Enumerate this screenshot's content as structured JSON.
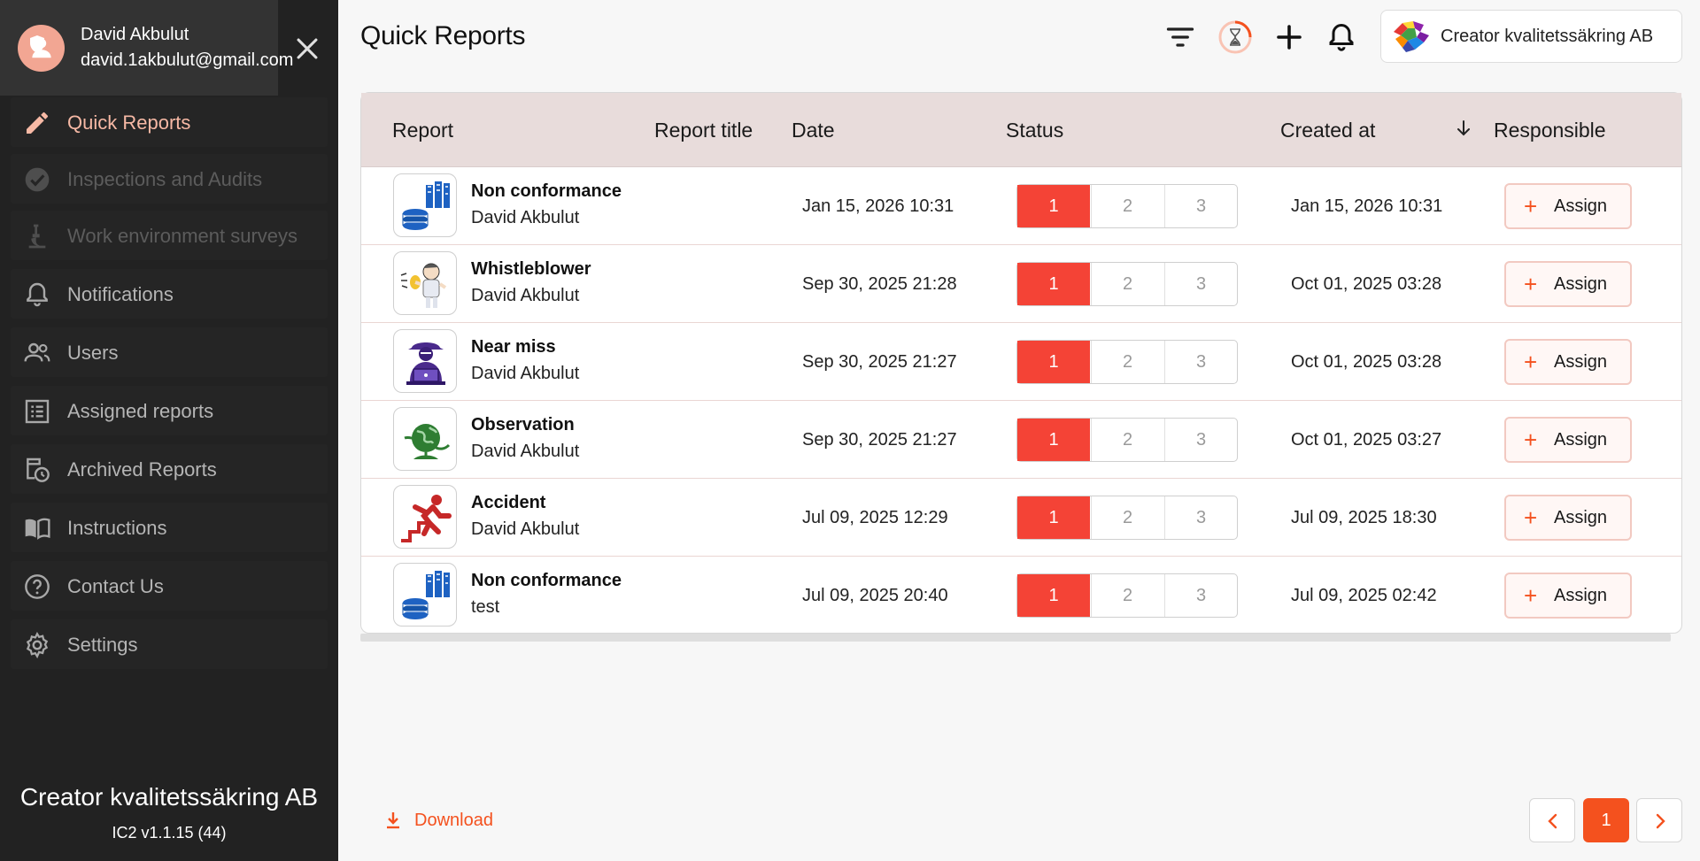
{
  "user": {
    "name": "David Akbulut",
    "email": "david.1akbulut@gmail.com"
  },
  "sidebar": {
    "items": [
      {
        "label": "Quick Reports",
        "icon": "pencil-icon",
        "state": "active"
      },
      {
        "label": "Inspections and Audits",
        "icon": "check-circle-icon",
        "state": "disabled"
      },
      {
        "label": "Work environment surveys",
        "icon": "microscope-icon",
        "state": "disabled"
      },
      {
        "label": "Notifications",
        "icon": "bell-icon",
        "state": "normal"
      },
      {
        "label": "Users",
        "icon": "users-icon",
        "state": "normal"
      },
      {
        "label": "Assigned reports",
        "icon": "list-icon",
        "state": "normal"
      },
      {
        "label": "Archived Reports",
        "icon": "archive-clock-icon",
        "state": "normal"
      },
      {
        "label": "Instructions",
        "icon": "book-icon",
        "state": "normal"
      },
      {
        "label": "Contact Us",
        "icon": "help-icon",
        "state": "normal"
      },
      {
        "label": "Settings",
        "icon": "gear-icon",
        "state": "normal"
      }
    ],
    "company": "Creator kvalitetssäkring AB",
    "version": "IC2 v1.1.15 (44)"
  },
  "header": {
    "title": "Quick Reports",
    "company_label": "Creator kvalitetssäkring AB"
  },
  "table": {
    "columns": {
      "report": "Report",
      "report_title": "Report title",
      "date": "Date",
      "status": "Status",
      "created_at": "Created at",
      "responsible": "Responsible"
    },
    "status_steps": [
      "1",
      "2",
      "3"
    ],
    "assign_label": "Assign",
    "rows": [
      {
        "type": "Non conformance",
        "user": "David Akbulut",
        "date": "Jan 15, 2026 10:31",
        "status": 1,
        "created_at": "Jan 15, 2026 10:31",
        "icon": "non-conformance-icon"
      },
      {
        "type": "Whistleblower",
        "user": "David Akbulut",
        "date": "Sep 30, 2025 21:28",
        "status": 1,
        "created_at": "Oct 01, 2025 03:28",
        "icon": "whistleblower-icon"
      },
      {
        "type": "Near miss",
        "user": "David Akbulut",
        "date": "Sep 30, 2025 21:27",
        "status": 1,
        "created_at": "Oct 01, 2025 03:28",
        "icon": "near-miss-icon"
      },
      {
        "type": "Observation",
        "user": "David Akbulut",
        "date": "Sep 30, 2025 21:27",
        "status": 1,
        "created_at": "Oct 01, 2025 03:27",
        "icon": "observation-icon"
      },
      {
        "type": "Accident",
        "user": "David Akbulut",
        "date": "Jul 09, 2025 12:29",
        "status": 1,
        "created_at": "Jul 09, 2025 18:30",
        "icon": "accident-icon"
      },
      {
        "type": "Non conformance",
        "user": "test",
        "date": "Jul 09, 2025 20:40",
        "status": 1,
        "created_at": "Jul 09, 2025 02:42",
        "icon": "non-conformance-icon"
      }
    ]
  },
  "footer": {
    "download_label": "Download",
    "current_page": "1"
  },
  "colors": {
    "accent": "#f4511e",
    "status_active": "#f44336",
    "sidebar_bg": "#222222",
    "table_header_bg": "#e8dcdb"
  }
}
